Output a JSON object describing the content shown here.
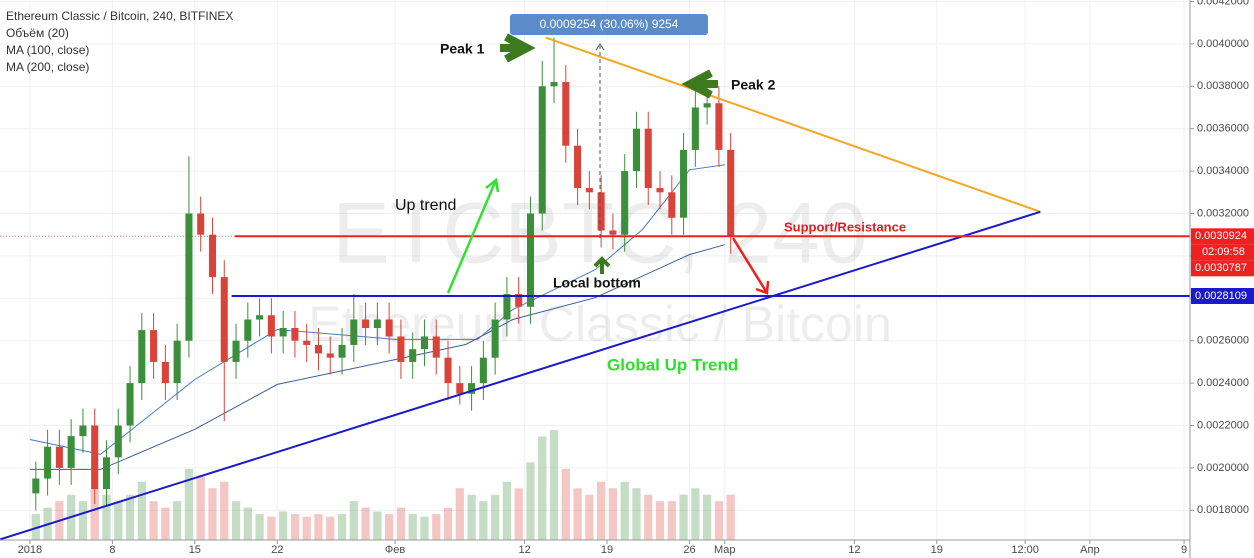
{
  "header": {
    "title": "Ethereum Classic / Bitcoin, 240, BITFINEX",
    "indicators": [
      "Объём (20)",
      "MA (100, close)",
      "MA (200, close)"
    ]
  },
  "watermark": {
    "symbol": "ETCBTC, 240",
    "description": "Ethereum Classic / Bitcoin"
  },
  "annotations": {
    "peak1": "Peak 1",
    "peak2": "Peak 2",
    "up_trend": "Up trend",
    "support": "Support/Resistance",
    "local_bottom": "Local bottom",
    "global_trend": "Global Up Trend",
    "measure": "0.0009254 (30.06%) 9254"
  },
  "chart_data": {
    "type": "candlestick",
    "x": [
      "2018-01-01",
      "2018-01-02",
      "2018-01-03",
      "2018-01-04",
      "2018-01-05",
      "2018-01-06",
      "2018-01-07",
      "2018-01-08",
      "2018-01-09",
      "2018-01-10",
      "2018-01-11",
      "2018-01-12",
      "2018-01-13",
      "2018-01-14",
      "2018-01-15",
      "2018-01-16",
      "2018-01-17",
      "2018-01-18",
      "2018-01-19",
      "2018-01-20",
      "2018-01-21",
      "2018-01-22",
      "2018-01-23",
      "2018-01-24",
      "2018-01-25",
      "2018-01-26",
      "2018-01-27",
      "2018-01-28",
      "2018-01-29",
      "2018-01-30",
      "2018-01-31",
      "2018-02-01",
      "2018-02-02",
      "2018-02-03",
      "2018-02-04",
      "2018-02-05",
      "2018-02-06",
      "2018-02-07",
      "2018-02-08",
      "2018-02-09",
      "2018-02-10",
      "2018-02-11",
      "2018-02-12",
      "2018-02-13",
      "2018-02-14",
      "2018-02-15",
      "2018-02-16",
      "2018-02-17",
      "2018-02-18",
      "2018-02-19",
      "2018-02-20",
      "2018-02-21",
      "2018-02-22",
      "2018-02-23",
      "2018-02-24",
      "2018-02-25",
      "2018-02-26",
      "2018-02-27",
      "2018-02-28",
      "2018-03-01"
    ],
    "open": [
      0.00188,
      0.00195,
      0.0021,
      0.002,
      0.00215,
      0.0022,
      0.0019,
      0.00205,
      0.0022,
      0.0024,
      0.00265,
      0.0025,
      0.0024,
      0.0026,
      0.0032,
      0.0031,
      0.0029,
      0.0025,
      0.0026,
      0.0027,
      0.00272,
      0.00262,
      0.00266,
      0.0026,
      0.00258,
      0.00254,
      0.00252,
      0.00258,
      0.0027,
      0.00266,
      0.0027,
      0.00262,
      0.0025,
      0.00256,
      0.00262,
      0.00252,
      0.0024,
      0.00235,
      0.0024,
      0.00252,
      0.0027,
      0.00282,
      0.00276,
      0.0032,
      0.0038,
      0.00382,
      0.00352,
      0.00332,
      0.0033,
      0.00312,
      0.0031,
      0.0034,
      0.0036,
      0.00332,
      0.0033,
      0.00318,
      0.0035,
      0.0037,
      0.00372,
      0.0035
    ],
    "high": [
      0.00203,
      0.00218,
      0.00218,
      0.00223,
      0.00228,
      0.00228,
      0.00213,
      0.00228,
      0.00248,
      0.00273,
      0.00273,
      0.00258,
      0.00268,
      0.00347,
      0.00328,
      0.00318,
      0.00298,
      0.00268,
      0.00278,
      0.0028,
      0.0028,
      0.00274,
      0.00274,
      0.00268,
      0.00266,
      0.00262,
      0.00266,
      0.00282,
      0.00278,
      0.00278,
      0.00278,
      0.0027,
      0.00264,
      0.0027,
      0.0027,
      0.0026,
      0.00248,
      0.00248,
      0.0026,
      0.00278,
      0.0029,
      0.0029,
      0.00328,
      0.00392,
      0.00403,
      0.0039,
      0.0036,
      0.0034,
      0.00338,
      0.0032,
      0.00348,
      0.00368,
      0.00368,
      0.0034,
      0.00338,
      0.00358,
      0.00378,
      0.00381,
      0.0038,
      0.00358
    ],
    "low": [
      0.0018,
      0.00187,
      0.00192,
      0.00192,
      0.00207,
      0.00183,
      0.00182,
      0.00197,
      0.00212,
      0.00232,
      0.00242,
      0.00232,
      0.00232,
      0.00252,
      0.00302,
      0.00282,
      0.00222,
      0.00242,
      0.00252,
      0.00262,
      0.00254,
      0.00254,
      0.00252,
      0.0025,
      0.00246,
      0.00244,
      0.00244,
      0.0025,
      0.00258,
      0.00258,
      0.00254,
      0.00242,
      0.00242,
      0.00248,
      0.00244,
      0.00232,
      0.0023,
      0.00227,
      0.00232,
      0.00244,
      0.00262,
      0.00268,
      0.00268,
      0.00312,
      0.00372,
      0.00344,
      0.00324,
      0.00322,
      0.00304,
      0.00303,
      0.00302,
      0.00332,
      0.00324,
      0.00322,
      0.0031,
      0.0031,
      0.00342,
      0.00362,
      0.00342,
      0.00301
    ],
    "close": [
      0.00195,
      0.0021,
      0.002,
      0.00215,
      0.0022,
      0.0019,
      0.00205,
      0.0022,
      0.0024,
      0.00265,
      0.0025,
      0.0024,
      0.0026,
      0.0032,
      0.0031,
      0.0029,
      0.0025,
      0.0026,
      0.0027,
      0.00272,
      0.00262,
      0.00266,
      0.0026,
      0.00258,
      0.00254,
      0.00252,
      0.00258,
      0.0027,
      0.00266,
      0.0027,
      0.00262,
      0.0025,
      0.00256,
      0.00262,
      0.00252,
      0.0024,
      0.00235,
      0.0024,
      0.00252,
      0.0027,
      0.00282,
      0.00276,
      0.0032,
      0.0038,
      0.00382,
      0.00352,
      0.00332,
      0.0033,
      0.00312,
      0.0031,
      0.0034,
      0.0036,
      0.00332,
      0.0033,
      0.00318,
      0.0035,
      0.0037,
      0.00372,
      0.0035,
      0.00309
    ],
    "volume": [
      20,
      25,
      30,
      35,
      30,
      40,
      35,
      30,
      35,
      45,
      30,
      25,
      30,
      55,
      50,
      40,
      45,
      30,
      25,
      20,
      18,
      22,
      20,
      18,
      20,
      18,
      20,
      30,
      25,
      22,
      20,
      25,
      20,
      18,
      20,
      25,
      40,
      35,
      30,
      35,
      45,
      40,
      60,
      80,
      85,
      55,
      40,
      35,
      45,
      40,
      45,
      40,
      35,
      30,
      30,
      35,
      40,
      35,
      30,
      35
    ],
    "up_color": "#3b8f3b",
    "down_color": "#d9443a",
    "xlim": [
      "2017-12-29T11:00",
      "2018-04-09T12:00"
    ],
    "xticks": [
      {
        "value": "2018-01-01",
        "label": "2018"
      },
      {
        "value": "2018-01-08",
        "label": "8"
      },
      {
        "value": "2018-01-15",
        "label": "15"
      },
      {
        "value": "2018-01-22",
        "label": "22"
      },
      {
        "value": "2018-02-01",
        "label": "Фев"
      },
      {
        "value": "2018-02-12",
        "label": "12"
      },
      {
        "value": "2018-02-19",
        "label": "19"
      },
      {
        "value": "2018-02-26",
        "label": "26"
      },
      {
        "value": "2018-03-01",
        "label": "Мар"
      },
      {
        "value": "2018-03-12",
        "label": "12"
      },
      {
        "value": "2018-03-19",
        "label": "19"
      },
      {
        "value": "2018-03-26T12:00",
        "label": "12:00"
      },
      {
        "value": "2018-04-01",
        "label": "Апр"
      },
      {
        "value": "2018-04-09",
        "label": "9"
      }
    ],
    "ylim": [
      0.00166,
      0.004207
    ],
    "yticks": [
      {
        "value": 0.0018,
        "label": "0.0018000"
      },
      {
        "value": 0.002,
        "label": "0.0020000"
      },
      {
        "value": 0.0022,
        "label": "0.0022000"
      },
      {
        "value": 0.0024,
        "label": "0.0024000"
      },
      {
        "value": 0.0026,
        "label": "0.0026000"
      },
      {
        "value": 0.0028,
        "label": "0.0028000"
      },
      {
        "value": 0.003,
        "label": "0.0030000"
      },
      {
        "value": 0.0032,
        "label": "0.0032000"
      },
      {
        "value": 0.0034,
        "label": "0.0034000"
      },
      {
        "value": 0.0036,
        "label": "0.0036000"
      },
      {
        "value": 0.0038,
        "label": "0.0038000"
      },
      {
        "value": 0.004,
        "label": "0.0040000"
      },
      {
        "value": 0.0042,
        "label": "0.0042000"
      }
    ],
    "grid": true,
    "moving_averages": [
      {
        "color": "#4a7fc0",
        "x": [
          "2018-01-01",
          "2018-01-07",
          "2018-01-15",
          "2018-01-22",
          "2018-02-01",
          "2018-02-08",
          "2018-02-11",
          "2018-02-18",
          "2018-02-22",
          "2018-02-26",
          "2018-03-01"
        ],
        "values": [
          0.002134,
          0.002064,
          0.002417,
          0.002653,
          0.002606,
          0.002606,
          0.002747,
          0.002935,
          0.003124,
          0.003406,
          0.00343
        ]
      },
      {
        "color": "#3a5f9a",
        "x": [
          "2018-01-01",
          "2018-01-07",
          "2018-01-15",
          "2018-01-22",
          "2018-02-01",
          "2018-02-07",
          "2018-02-11",
          "2018-02-18",
          "2018-02-26",
          "2018-03-01"
        ],
        "values": [
          0.001993,
          0.001993,
          0.002182,
          0.002394,
          0.002511,
          0.002582,
          0.0027,
          0.002803,
          0.003006,
          0.003053
        ]
      }
    ],
    "trendlines": [
      {
        "color": "#f5a623",
        "x": [
          "2018-02-13T19:00",
          "2018-03-27T19:00"
        ],
        "values": [
          0.00403,
          0.003208
        ]
      },
      {
        "color": "#1a1acc",
        "x": [
          "2017-12-29T11:00",
          "2018-03-27T19:00"
        ],
        "values": [
          0.001663,
          0.003208
        ]
      }
    ],
    "levels": [
      {
        "value": 0.0030924,
        "label": "0.0030924",
        "color": "#ee2020",
        "start": "2018-01-18T10:00"
      },
      {
        "value": 0.0028109,
        "label": "0.0028109",
        "color": "#1a1acc",
        "start": "2018-01-18T03:00"
      }
    ],
    "countdown": "02:09:58",
    "last_price": {
      "value": 0.0030787,
      "label": "0.0030787",
      "color": "#ee2020"
    }
  }
}
